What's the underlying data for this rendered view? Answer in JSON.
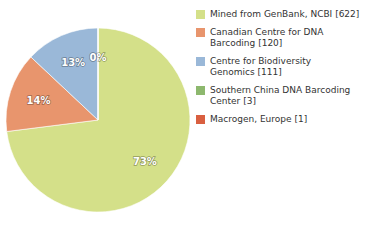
{
  "chart_data": {
    "type": "pie",
    "categories": [
      "Mined from GenBank, NCBI [622]",
      "Canadian Centre for DNA\nBarcoding [120]",
      "Centre for Biodiversity\nGenomics [111]",
      "Southern China DNA Barcoding\nCenter [3]",
      "Macrogen, Europe [1]"
    ],
    "values": [
      73,
      14,
      13,
      0,
      0
    ],
    "value_labels": [
      "73%",
      "14%",
      "13%",
      "0%",
      null
    ],
    "data_labels": true,
    "colors": [
      "#d4e089",
      "#e8956d",
      "#9ab8d8",
      "#8db86e",
      "#d95f40"
    ],
    "legend": "right"
  }
}
